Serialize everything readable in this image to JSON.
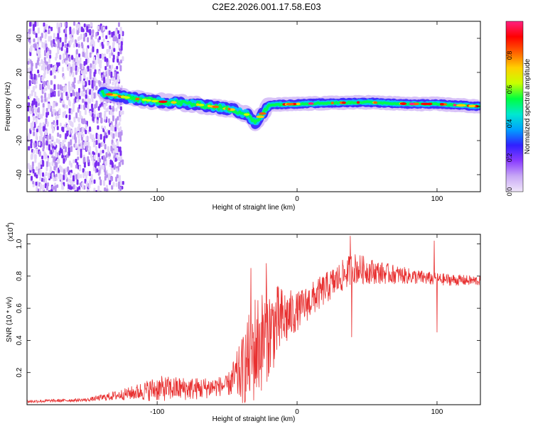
{
  "figure_title": "C2E2.2026.001.17.58.E03",
  "chart_data": [
    {
      "type": "heatmap",
      "title": "C2E2.2026.001.17.58.E03",
      "xlabel": "Height of straight line (km)",
      "ylabel": "Frequency (Hz)",
      "xlim": [
        -193,
        131
      ],
      "ylim": [
        -50,
        50
      ],
      "xticks": [
        -100,
        0,
        100
      ],
      "xtick_labels": [
        "-100",
        "0",
        "100"
      ],
      "yticks": [
        -40,
        -20,
        0,
        20,
        40
      ],
      "ytick_labels": [
        "-40",
        "-20",
        "0",
        "20",
        "40"
      ],
      "colorbar": {
        "label": "Normalized spectral amplitude",
        "range": [
          0,
          1
        ],
        "ticks": [
          0.0,
          0.2,
          0.4,
          0.6,
          0.8
        ],
        "tick_labels": [
          "0.0",
          "0.2",
          "0.4",
          "0.6",
          "0.8"
        ],
        "colors": [
          "#f0e6fa",
          "#c8a8f5",
          "#8a3cff",
          "#3020ff",
          "#00a0ff",
          "#00e8d0",
          "#00ff40",
          "#c8ff00",
          "#ffd000",
          "#ff6000",
          "#ff0000",
          "#ff2080"
        ]
      },
      "noise_region_x": [
        -193,
        -125
      ],
      "signal_centerline": [
        {
          "x": -140,
          "y": 8
        },
        {
          "x": -120,
          "y": 5
        },
        {
          "x": -100,
          "y": 3
        },
        {
          "x": -80,
          "y": 2
        },
        {
          "x": -60,
          "y": 0
        },
        {
          "x": -45,
          "y": -2
        },
        {
          "x": -35,
          "y": -5
        },
        {
          "x": -30,
          "y": -10
        },
        {
          "x": -20,
          "y": 1
        },
        {
          "x": 0,
          "y": 1.5
        },
        {
          "x": 20,
          "y": 2
        },
        {
          "x": 50,
          "y": 2.5
        },
        {
          "x": 80,
          "y": 1.5
        },
        {
          "x": 100,
          "y": 1.5
        },
        {
          "x": 131,
          "y": 0
        }
      ]
    },
    {
      "type": "line",
      "xlabel": "Height of straight line (km)",
      "ylabel": "SNR (10 * v/v)",
      "y_multiplier": "(x10",
      "y_multiplier_exp": "4",
      "xlim": [
        -193,
        131
      ],
      "ylim": [
        0,
        1.06
      ],
      "xticks": [
        -100,
        0,
        100
      ],
      "xtick_labels": [
        "-100",
        "0",
        "100"
      ],
      "yticks": [
        0.2,
        0.4,
        0.6,
        0.8,
        1.0
      ],
      "ytick_labels": [
        "0.2",
        "0.4",
        "0.6",
        "0.8",
        "1.0"
      ],
      "series_color": "#e83030",
      "envelope": [
        {
          "x": -193,
          "base": 0.02,
          "noise": 0.01
        },
        {
          "x": -150,
          "base": 0.03,
          "noise": 0.01
        },
        {
          "x": -120,
          "base": 0.07,
          "noise": 0.04
        },
        {
          "x": -100,
          "base": 0.1,
          "noise": 0.08
        },
        {
          "x": -70,
          "base": 0.1,
          "noise": 0.07
        },
        {
          "x": -50,
          "base": 0.12,
          "noise": 0.06
        },
        {
          "x": -40,
          "base": 0.2,
          "noise": 0.2
        },
        {
          "x": -30,
          "base": 0.35,
          "noise": 0.35
        },
        {
          "x": -15,
          "base": 0.5,
          "noise": 0.25
        },
        {
          "x": 0,
          "base": 0.58,
          "noise": 0.12
        },
        {
          "x": 20,
          "base": 0.72,
          "noise": 0.1
        },
        {
          "x": 40,
          "base": 0.85,
          "noise": 0.1
        },
        {
          "x": 60,
          "base": 0.82,
          "noise": 0.07
        },
        {
          "x": 80,
          "base": 0.8,
          "noise": 0.05
        },
        {
          "x": 100,
          "base": 0.78,
          "noise": 0.04
        },
        {
          "x": 131,
          "base": 0.77,
          "noise": 0.03
        }
      ],
      "spikes": [
        {
          "x": -33,
          "y": 0.85
        },
        {
          "x": -22,
          "y": 0.88
        },
        {
          "x": 38,
          "y": 1.05
        },
        {
          "x": 98,
          "y": 1.02
        }
      ],
      "dips": [
        {
          "x": 39,
          "y": 0.42
        },
        {
          "x": 100,
          "y": 0.45
        }
      ]
    }
  ]
}
